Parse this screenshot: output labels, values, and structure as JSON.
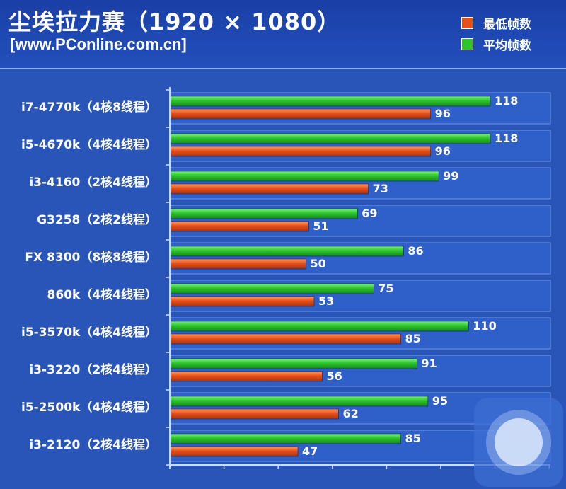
{
  "header": {
    "title": "尘埃拉力赛（1920 × 1080）",
    "source": "[www.PConline.com.cn]"
  },
  "colors": {
    "min_fps": "#e8501a",
    "avg_fps": "#2dc42d",
    "background": "#2a55b8",
    "row_band": "#2e5cc4"
  },
  "chart_data": {
    "type": "bar",
    "orientation": "horizontal",
    "title": "尘埃拉力赛（1920 × 1080）",
    "categories": [
      "i7-4770k（4核8线程）",
      "i5-4670k（4核4线程）",
      "i3-4160（2核4线程）",
      "G3258（2核2线程）",
      "FX 8300（8核8线程）",
      "860k（4核4线程）",
      "i5-3570k（4核4线程）",
      "i3-3220（2核4线程）",
      "i5-2500k（4核4线程）",
      "i3-2120（2核4线程）"
    ],
    "series": [
      {
        "name": "平均帧数",
        "color": "#2dc42d",
        "values": [
          118,
          118,
          99,
          69,
          86,
          75,
          110,
          91,
          95,
          85
        ]
      },
      {
        "name": "最低帧数",
        "color": "#e8501a",
        "values": [
          96,
          96,
          73,
          51,
          50,
          53,
          85,
          56,
          62,
          47
        ]
      }
    ],
    "xlim": [
      0,
      150
    ],
    "legend": [
      {
        "label": "最低帧数",
        "color": "#e8501a"
      },
      {
        "label": "平均帧数",
        "color": "#2dc42d"
      }
    ],
    "legend_position": "top-right",
    "grid": false
  },
  "watermark": {
    "icon": "circle-badge-icon"
  }
}
